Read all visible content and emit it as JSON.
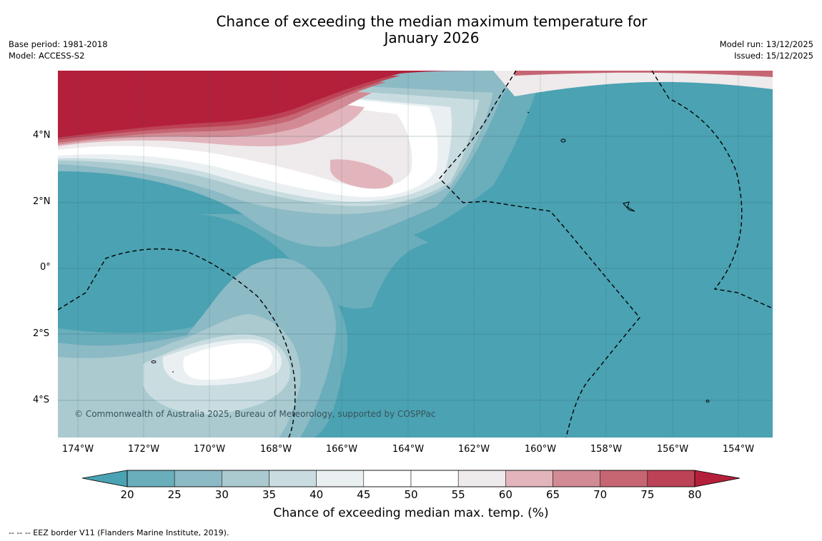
{
  "title": {
    "line1": "Chance of exceeding the median maximum temperature for",
    "line2": "January 2026"
  },
  "meta_left": {
    "base_period": "Base period: 1981-2018",
    "model": "Model: ACCESS-S2"
  },
  "meta_right": {
    "model_run": "Model run: 13/12/2025",
    "issued": "Issued: 15/12/2025"
  },
  "map": {
    "lat_labels": [
      "4°N",
      "2°N",
      "0°",
      "2°S",
      "4°S"
    ],
    "lon_labels": [
      "174°W",
      "172°W",
      "170°W",
      "168°W",
      "166°W",
      "164°W",
      "162°W",
      "160°W",
      "158°W",
      "156°W",
      "154°W"
    ],
    "copyright": "© Commonwealth of Australia 2025, Bureau of Meteorology, supported by COSPPac"
  },
  "colorbar": {
    "ticks": [
      "20",
      "25",
      "30",
      "35",
      "40",
      "45",
      "50",
      "55",
      "60",
      "65",
      "70",
      "75",
      "80"
    ],
    "colors": [
      "#4aa2b2",
      "#6aadbb",
      "#8cbac5",
      "#aacad0",
      "#c9dde1",
      "#eaf0f2",
      "#ffffff",
      "#ffffff",
      "#efeaeb",
      "#e2b5bc",
      "#d28b95",
      "#c66673",
      "#bc4255",
      "#b41f3a"
    ],
    "label": "Chance of exceeding median max. temp. (%)"
  },
  "footer": "--  --  -- EEZ border V11 (Flanders Marine Institute, 2019)."
}
